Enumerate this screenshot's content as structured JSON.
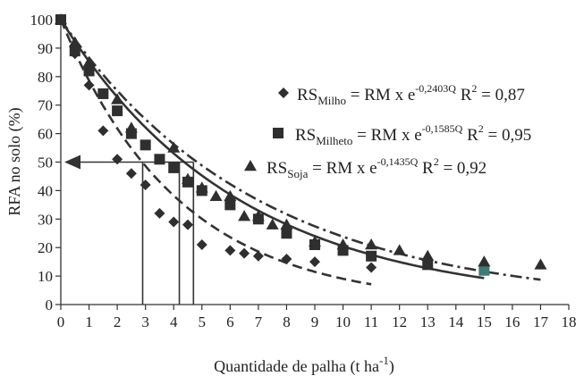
{
  "chart_data": {
    "type": "scatter",
    "title": "",
    "xlabel": "Quantidade de palha",
    "xlabel_unit_base": "t ha",
    "xlabel_unit_exp": "-1",
    "xlabel_close": ")",
    "xlabel_open": " (",
    "ylabel": "RFA no solo (%)",
    "xlim": [
      0,
      18
    ],
    "ylim": [
      0,
      100
    ],
    "x_ticks": [
      0,
      1,
      2,
      3,
      4,
      5,
      6,
      7,
      8,
      9,
      10,
      11,
      12,
      13,
      14,
      15,
      16,
      17,
      18
    ],
    "y_ticks": [
      0,
      10,
      20,
      30,
      40,
      50,
      60,
      70,
      80,
      90,
      100
    ],
    "grid": false,
    "legend_position": "center-right",
    "series": [
      {
        "name": "RS Milho",
        "marker": "diamond",
        "points": [
          [
            0,
            100
          ],
          [
            0.5,
            88
          ],
          [
            1,
            77
          ],
          [
            1.5,
            61
          ],
          [
            2,
            51
          ],
          [
            2.5,
            46
          ],
          [
            3,
            42
          ],
          [
            3.5,
            32
          ],
          [
            4,
            29
          ],
          [
            4.5,
            28
          ],
          [
            5,
            21
          ],
          [
            6,
            19
          ],
          [
            6.5,
            18
          ],
          [
            7,
            17
          ],
          [
            8,
            16
          ],
          [
            9,
            15
          ],
          [
            11,
            13
          ]
        ],
        "fit_coefficient": 0.2403,
        "fit_line": "dashed"
      },
      {
        "name": "RS Milheto",
        "marker": "square",
        "points": [
          [
            0,
            100
          ],
          [
            0.5,
            89
          ],
          [
            1,
            82
          ],
          [
            1.5,
            74
          ],
          [
            2,
            68
          ],
          [
            2.5,
            60
          ],
          [
            3,
            56
          ],
          [
            3.5,
            51
          ],
          [
            4,
            48
          ],
          [
            4.5,
            43
          ],
          [
            5,
            40
          ],
          [
            6,
            35
          ],
          [
            7,
            30
          ],
          [
            8,
            25
          ],
          [
            9,
            21
          ],
          [
            10,
            19
          ],
          [
            11,
            17
          ],
          [
            13,
            14
          ],
          [
            15,
            12
          ]
        ],
        "fit_coefficient": 0.1585,
        "fit_line": "solid"
      },
      {
        "name": "RS Soja",
        "marker": "triangle",
        "points": [
          [
            0,
            100
          ],
          [
            0.5,
            92
          ],
          [
            1,
            85
          ],
          [
            2,
            72
          ],
          [
            2.5,
            62
          ],
          [
            4,
            55
          ],
          [
            4.5,
            44
          ],
          [
            5,
            41
          ],
          [
            5.5,
            38
          ],
          [
            6,
            38
          ],
          [
            6.5,
            31
          ],
          [
            7,
            31
          ],
          [
            7.5,
            28
          ],
          [
            8,
            28
          ],
          [
            9,
            22
          ],
          [
            10,
            21
          ],
          [
            11,
            21
          ],
          [
            12,
            19
          ],
          [
            13,
            17
          ],
          [
            15,
            15
          ],
          [
            17,
            14
          ]
        ],
        "fit_coefficient": 0.1435,
        "fit_line": "dash-dot"
      }
    ],
    "annotation": {
      "y_value": 50,
      "x_values": [
        2.9,
        4.2,
        4.7
      ]
    },
    "legend": [
      {
        "marker": "diamond",
        "rs": "RS",
        "sub": "Milho",
        "eq": " = RM x e",
        "exp": "-0,2403Q",
        "r2": " R",
        "r2exp": "2",
        "r2val": " = 0,87"
      },
      {
        "marker": "square",
        "rs": "RS",
        "sub": "Milheto",
        "eq": " = RM x e",
        "exp": "-0,1585Q",
        "r2": " R",
        "r2exp": "2",
        "r2val": " = 0,95"
      },
      {
        "marker": "triangle",
        "rs": "RS",
        "sub": "Soja",
        "eq": " = RM x e",
        "exp": "-0,1435Q",
        "r2": " R",
        "r2exp": "2",
        "r2val": " = 0,92"
      }
    ],
    "colors": {
      "markers": "#2f2f2f",
      "axis": "#333333",
      "highlight_square": "#3d7a7a"
    }
  }
}
